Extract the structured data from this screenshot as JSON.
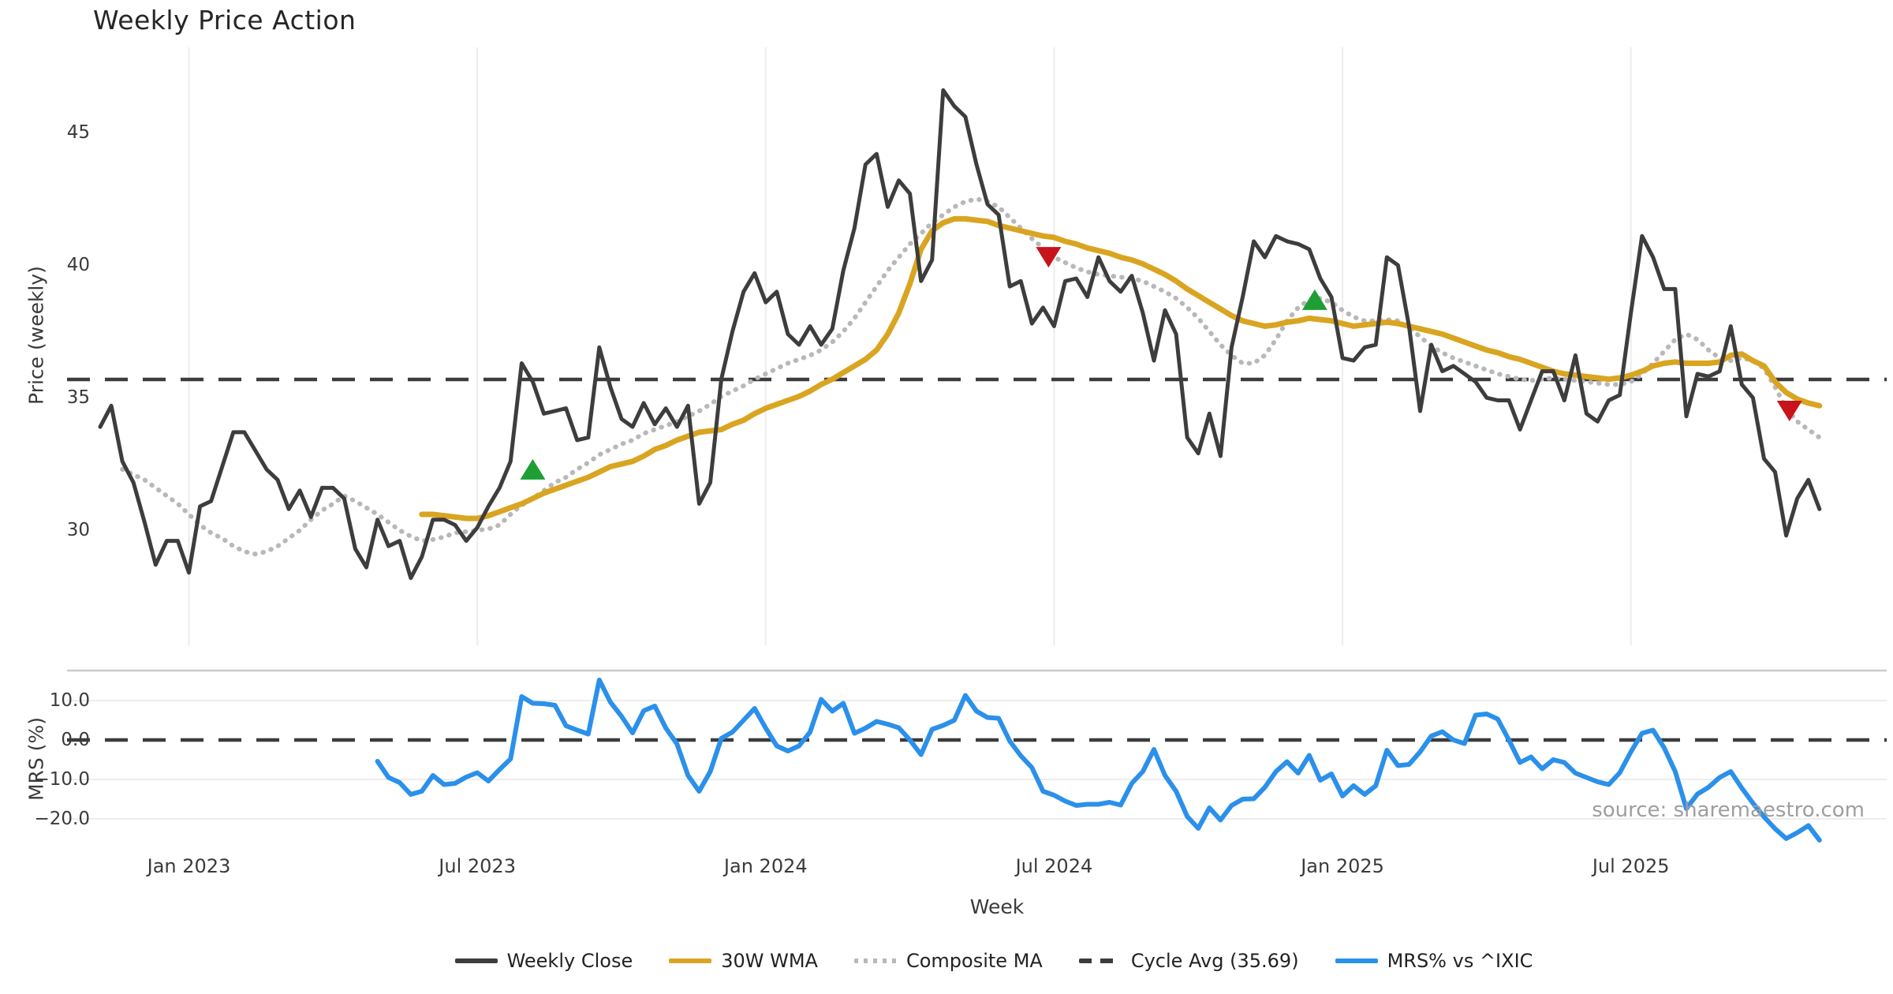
{
  "title": "Weekly Price Action",
  "source_text": "source: sharemaestro.com",
  "axis_titles": {
    "price": "Price (weekly)",
    "mrs": "MRS (%)",
    "x": "Week"
  },
  "legend": [
    {
      "label": "Weekly Close",
      "color": "#3d3d3d",
      "style": "solid"
    },
    {
      "label": "30W WMA",
      "color": "#d9a521",
      "style": "solid"
    },
    {
      "label": "Composite MA",
      "color": "#b8b8b8",
      "style": "dotted"
    },
    {
      "label": "Cycle Avg (35.69)",
      "color": "#3c3c3c",
      "style": "dashed"
    },
    {
      "label": "MRS% vs ^IXIC",
      "color": "#2b90ea",
      "style": "solid"
    }
  ],
  "chart_data": {
    "type": "line",
    "x_axis_note": "weekly points; week 0 = first plotted week (early Nov 2022)",
    "x_ticks": [
      {
        "week": 8,
        "label": "Jan 2023"
      },
      {
        "week": 34,
        "label": "Jul 2023"
      },
      {
        "week": 60,
        "label": "Jan 2024"
      },
      {
        "week": 86,
        "label": "Jul 2024"
      },
      {
        "week": 112,
        "label": "Jan 2025"
      },
      {
        "week": 138,
        "label": "Jul 2025"
      }
    ],
    "price_panel": {
      "ylim": [
        26,
        48.4
      ],
      "cycle_avg": 35.69,
      "yticks": [
        {
          "v": 45,
          "label": "45"
        },
        {
          "v": 40,
          "label": "40"
        },
        {
          "v": 35,
          "label": "35"
        },
        {
          "v": 30,
          "label": "30"
        }
      ]
    },
    "mrs_panel": {
      "ylim": [
        -27.5,
        17.6
      ],
      "zero_line": 0,
      "yticks": [
        {
          "v": 10,
          "label": "10.0"
        },
        {
          "v": 0,
          "label": "0.0"
        },
        {
          "v": -10,
          "label": "−10.0"
        },
        {
          "v": -20,
          "label": "−20.0"
        }
      ]
    },
    "series": [
      {
        "name": "Weekly Close",
        "panel": "price",
        "color": "#3d3d3d",
        "width": 5,
        "dash": "solid",
        "start_week": 0,
        "values": [
          33.9,
          34.7,
          32.6,
          31.8,
          30.3,
          28.7,
          29.6,
          29.6,
          28.4,
          30.9,
          31.1,
          32.4,
          33.7,
          33.7,
          33.0,
          32.3,
          31.9,
          30.8,
          31.5,
          30.5,
          31.6,
          31.6,
          31.2,
          29.3,
          28.6,
          30.4,
          29.4,
          29.6,
          28.2,
          29.0,
          30.4,
          30.4,
          30.2,
          29.6,
          30.1,
          30.9,
          31.6,
          32.6,
          36.3,
          35.6,
          34.4,
          34.5,
          34.6,
          33.4,
          33.5,
          36.9,
          35.4,
          34.2,
          33.9,
          34.8,
          34.0,
          34.6,
          33.9,
          34.7,
          31.0,
          31.8,
          35.7,
          37.5,
          39.0,
          39.7,
          38.6,
          39.0,
          37.4,
          37.0,
          37.7,
          37.0,
          37.6,
          39.8,
          41.4,
          43.8,
          44.2,
          42.2,
          43.2,
          42.7,
          39.4,
          40.2,
          46.6,
          46.0,
          45.6,
          43.8,
          42.3,
          41.9,
          39.2,
          39.4,
          37.8,
          38.4,
          37.7,
          39.4,
          39.5,
          38.8,
          40.3,
          39.4,
          39.0,
          39.6,
          38.2,
          36.4,
          38.3,
          37.4,
          33.5,
          32.9,
          34.4,
          32.8,
          36.9,
          38.8,
          40.9,
          40.3,
          41.1,
          40.9,
          40.8,
          40.6,
          39.5,
          38.8,
          36.5,
          36.4,
          36.9,
          37.0,
          40.3,
          40.0,
          37.7,
          34.5,
          37.0,
          36.0,
          36.2,
          35.9,
          35.6,
          35.0,
          34.9,
          34.9,
          33.8,
          34.9,
          36.0,
          36.0,
          34.9,
          36.6,
          34.4,
          34.1,
          34.9,
          35.1,
          38.2,
          41.1,
          40.3,
          39.1,
          39.1,
          34.3,
          35.9,
          35.8,
          36.0,
          37.7,
          35.5,
          35.0,
          32.7,
          32.2,
          29.8,
          31.2,
          31.9,
          30.8
        ]
      },
      {
        "name": "30W WMA",
        "panel": "price",
        "color": "#d9a521",
        "width": 7,
        "dash": "solid",
        "start_week": 29,
        "values": [
          30.6,
          30.6,
          30.55,
          30.5,
          30.45,
          30.45,
          30.55,
          30.7,
          30.85,
          31.0,
          31.2,
          31.4,
          31.55,
          31.7,
          31.85,
          32.0,
          32.2,
          32.4,
          32.5,
          32.6,
          32.8,
          33.05,
          33.2,
          33.4,
          33.55,
          33.7,
          33.75,
          33.8,
          34.0,
          34.15,
          34.4,
          34.6,
          34.75,
          34.9,
          35.05,
          35.25,
          35.5,
          35.7,
          35.95,
          36.2,
          36.45,
          36.8,
          37.4,
          38.2,
          39.3,
          40.6,
          41.3,
          41.6,
          41.75,
          41.75,
          41.7,
          41.65,
          41.5,
          41.4,
          41.3,
          41.2,
          41.1,
          41.05,
          40.9,
          40.8,
          40.65,
          40.55,
          40.45,
          40.3,
          40.2,
          40.05,
          39.85,
          39.65,
          39.4,
          39.1,
          38.85,
          38.6,
          38.35,
          38.1,
          37.9,
          37.8,
          37.7,
          37.75,
          37.85,
          37.9,
          38.0,
          37.95,
          37.9,
          37.8,
          37.7,
          37.75,
          37.8,
          37.85,
          37.8,
          37.7,
          37.6,
          37.5,
          37.4,
          37.25,
          37.1,
          36.95,
          36.8,
          36.7,
          36.55,
          36.45,
          36.3,
          36.15,
          36.0,
          35.9,
          35.85,
          35.8,
          35.75,
          35.7,
          35.75,
          35.85,
          36.0,
          36.2,
          36.3,
          36.35,
          36.3,
          36.3,
          36.3,
          36.35,
          36.6,
          36.65,
          36.4,
          36.2,
          35.6,
          35.2,
          34.95,
          34.8,
          34.7
        ]
      },
      {
        "name": "Composite MA",
        "panel": "price",
        "color": "#b8b8b8",
        "width": 5,
        "dash": "dotted",
        "start_week": 2,
        "values": [
          32.3,
          32.1,
          31.9,
          31.6,
          31.3,
          31.0,
          30.6,
          30.2,
          29.9,
          29.7,
          29.4,
          29.2,
          29.1,
          29.2,
          29.4,
          29.7,
          30.0,
          30.4,
          30.75,
          31.0,
          31.3,
          31.1,
          30.85,
          30.6,
          30.3,
          30.0,
          29.77,
          29.6,
          29.65,
          29.75,
          29.9,
          29.95,
          30.0,
          30.05,
          30.2,
          30.6,
          30.95,
          31.2,
          31.5,
          31.8,
          32.0,
          32.3,
          32.55,
          32.85,
          33.05,
          33.25,
          33.4,
          33.65,
          33.8,
          33.95,
          34.1,
          34.3,
          34.5,
          34.75,
          35.05,
          35.25,
          35.45,
          35.7,
          35.9,
          36.1,
          36.3,
          36.45,
          36.6,
          36.8,
          37.1,
          37.5,
          38.0,
          38.6,
          39.2,
          39.8,
          40.3,
          40.8,
          41.2,
          41.6,
          41.9,
          42.2,
          42.4,
          42.5,
          42.4,
          42.2,
          41.8,
          41.4,
          41.0,
          40.65,
          40.3,
          40.1,
          39.9,
          39.75,
          39.65,
          39.6,
          39.55,
          39.5,
          39.4,
          39.2,
          39.0,
          38.75,
          38.4,
          38.0,
          37.5,
          37.0,
          36.6,
          36.3,
          36.3,
          36.6,
          37.2,
          37.9,
          38.4,
          38.7,
          38.75,
          38.6,
          38.3,
          38.05,
          37.9,
          37.9,
          37.95,
          37.9,
          37.65,
          37.3,
          36.95,
          36.7,
          36.5,
          36.35,
          36.2,
          36.05,
          35.9,
          35.8,
          35.7,
          35.65,
          35.7,
          35.75,
          35.7,
          35.65,
          35.6,
          35.55,
          35.5,
          35.5,
          35.6,
          35.9,
          36.3,
          36.75,
          37.2,
          37.4,
          37.2,
          36.8,
          36.5,
          36.4,
          36.5,
          36.4,
          36.1,
          35.4,
          34.6,
          34.1,
          33.8,
          33.5
        ]
      },
      {
        "name": "MRS% vs ^IXIC",
        "panel": "mrs",
        "color": "#2b90ea",
        "width": 6,
        "dash": "solid",
        "start_week": 25,
        "values": [
          -5.4,
          -9.5,
          -10.8,
          -13.8,
          -13.0,
          -9.0,
          -11.3,
          -11.0,
          -9.4,
          -8.3,
          -10.4,
          -7.5,
          -4.8,
          11.0,
          9.3,
          9.2,
          8.8,
          3.6,
          2.5,
          1.5,
          15.2,
          9.6,
          6.0,
          1.8,
          7.4,
          8.6,
          3.0,
          -1.0,
          -9.0,
          -13.0,
          -8.0,
          0.4,
          2.0,
          5.0,
          8.0,
          3.0,
          -1.5,
          -2.8,
          -1.5,
          2.0,
          10.3,
          7.3,
          9.3,
          1.7,
          3.0,
          4.7,
          4.0,
          3.1,
          0.0,
          -3.7,
          2.7,
          3.7,
          5.0,
          11.3,
          7.3,
          5.7,
          5.5,
          -0.3,
          -4.0,
          -7.0,
          -13.0,
          -14.0,
          -15.5,
          -16.6,
          -16.3,
          -16.3,
          -15.8,
          -16.5,
          -11.0,
          -8.0,
          -2.4,
          -9.0,
          -13.0,
          -19.4,
          -22.4,
          -17.2,
          -20.3,
          -16.6,
          -15.0,
          -14.9,
          -12.0,
          -8.0,
          -5.5,
          -8.4,
          -3.9,
          -10.2,
          -8.6,
          -14.2,
          -11.6,
          -13.8,
          -11.6,
          -2.6,
          -6.5,
          -6.2,
          -3.0,
          1.0,
          2.1,
          0.0,
          -0.9,
          6.3,
          6.6,
          5.3,
          0.0,
          -5.7,
          -4.3,
          -7.3,
          -5.0,
          -5.7,
          -8.4,
          -9.5,
          -10.6,
          -11.3,
          -8.3,
          -3.0,
          1.7,
          2.5,
          -2.0,
          -8.0,
          -17.4,
          -13.7,
          -12.0,
          -9.5,
          -8.0,
          -12.2,
          -16.0,
          -19.5,
          -22.5,
          -25.0,
          -23.5,
          -21.7,
          -25.4
        ]
      }
    ],
    "markers": {
      "buy": {
        "color": "#1e9e33",
        "shape": "triangle-up",
        "points": [
          {
            "week": 39,
            "price": 32.3
          },
          {
            "week": 109.5,
            "price": 38.7
          }
        ]
      },
      "sell": {
        "color": "#c8131a",
        "shape": "triangle-down",
        "points": [
          {
            "week": 85.5,
            "price": 40.3
          },
          {
            "week": 152.3,
            "price": 34.5
          }
        ]
      }
    }
  }
}
